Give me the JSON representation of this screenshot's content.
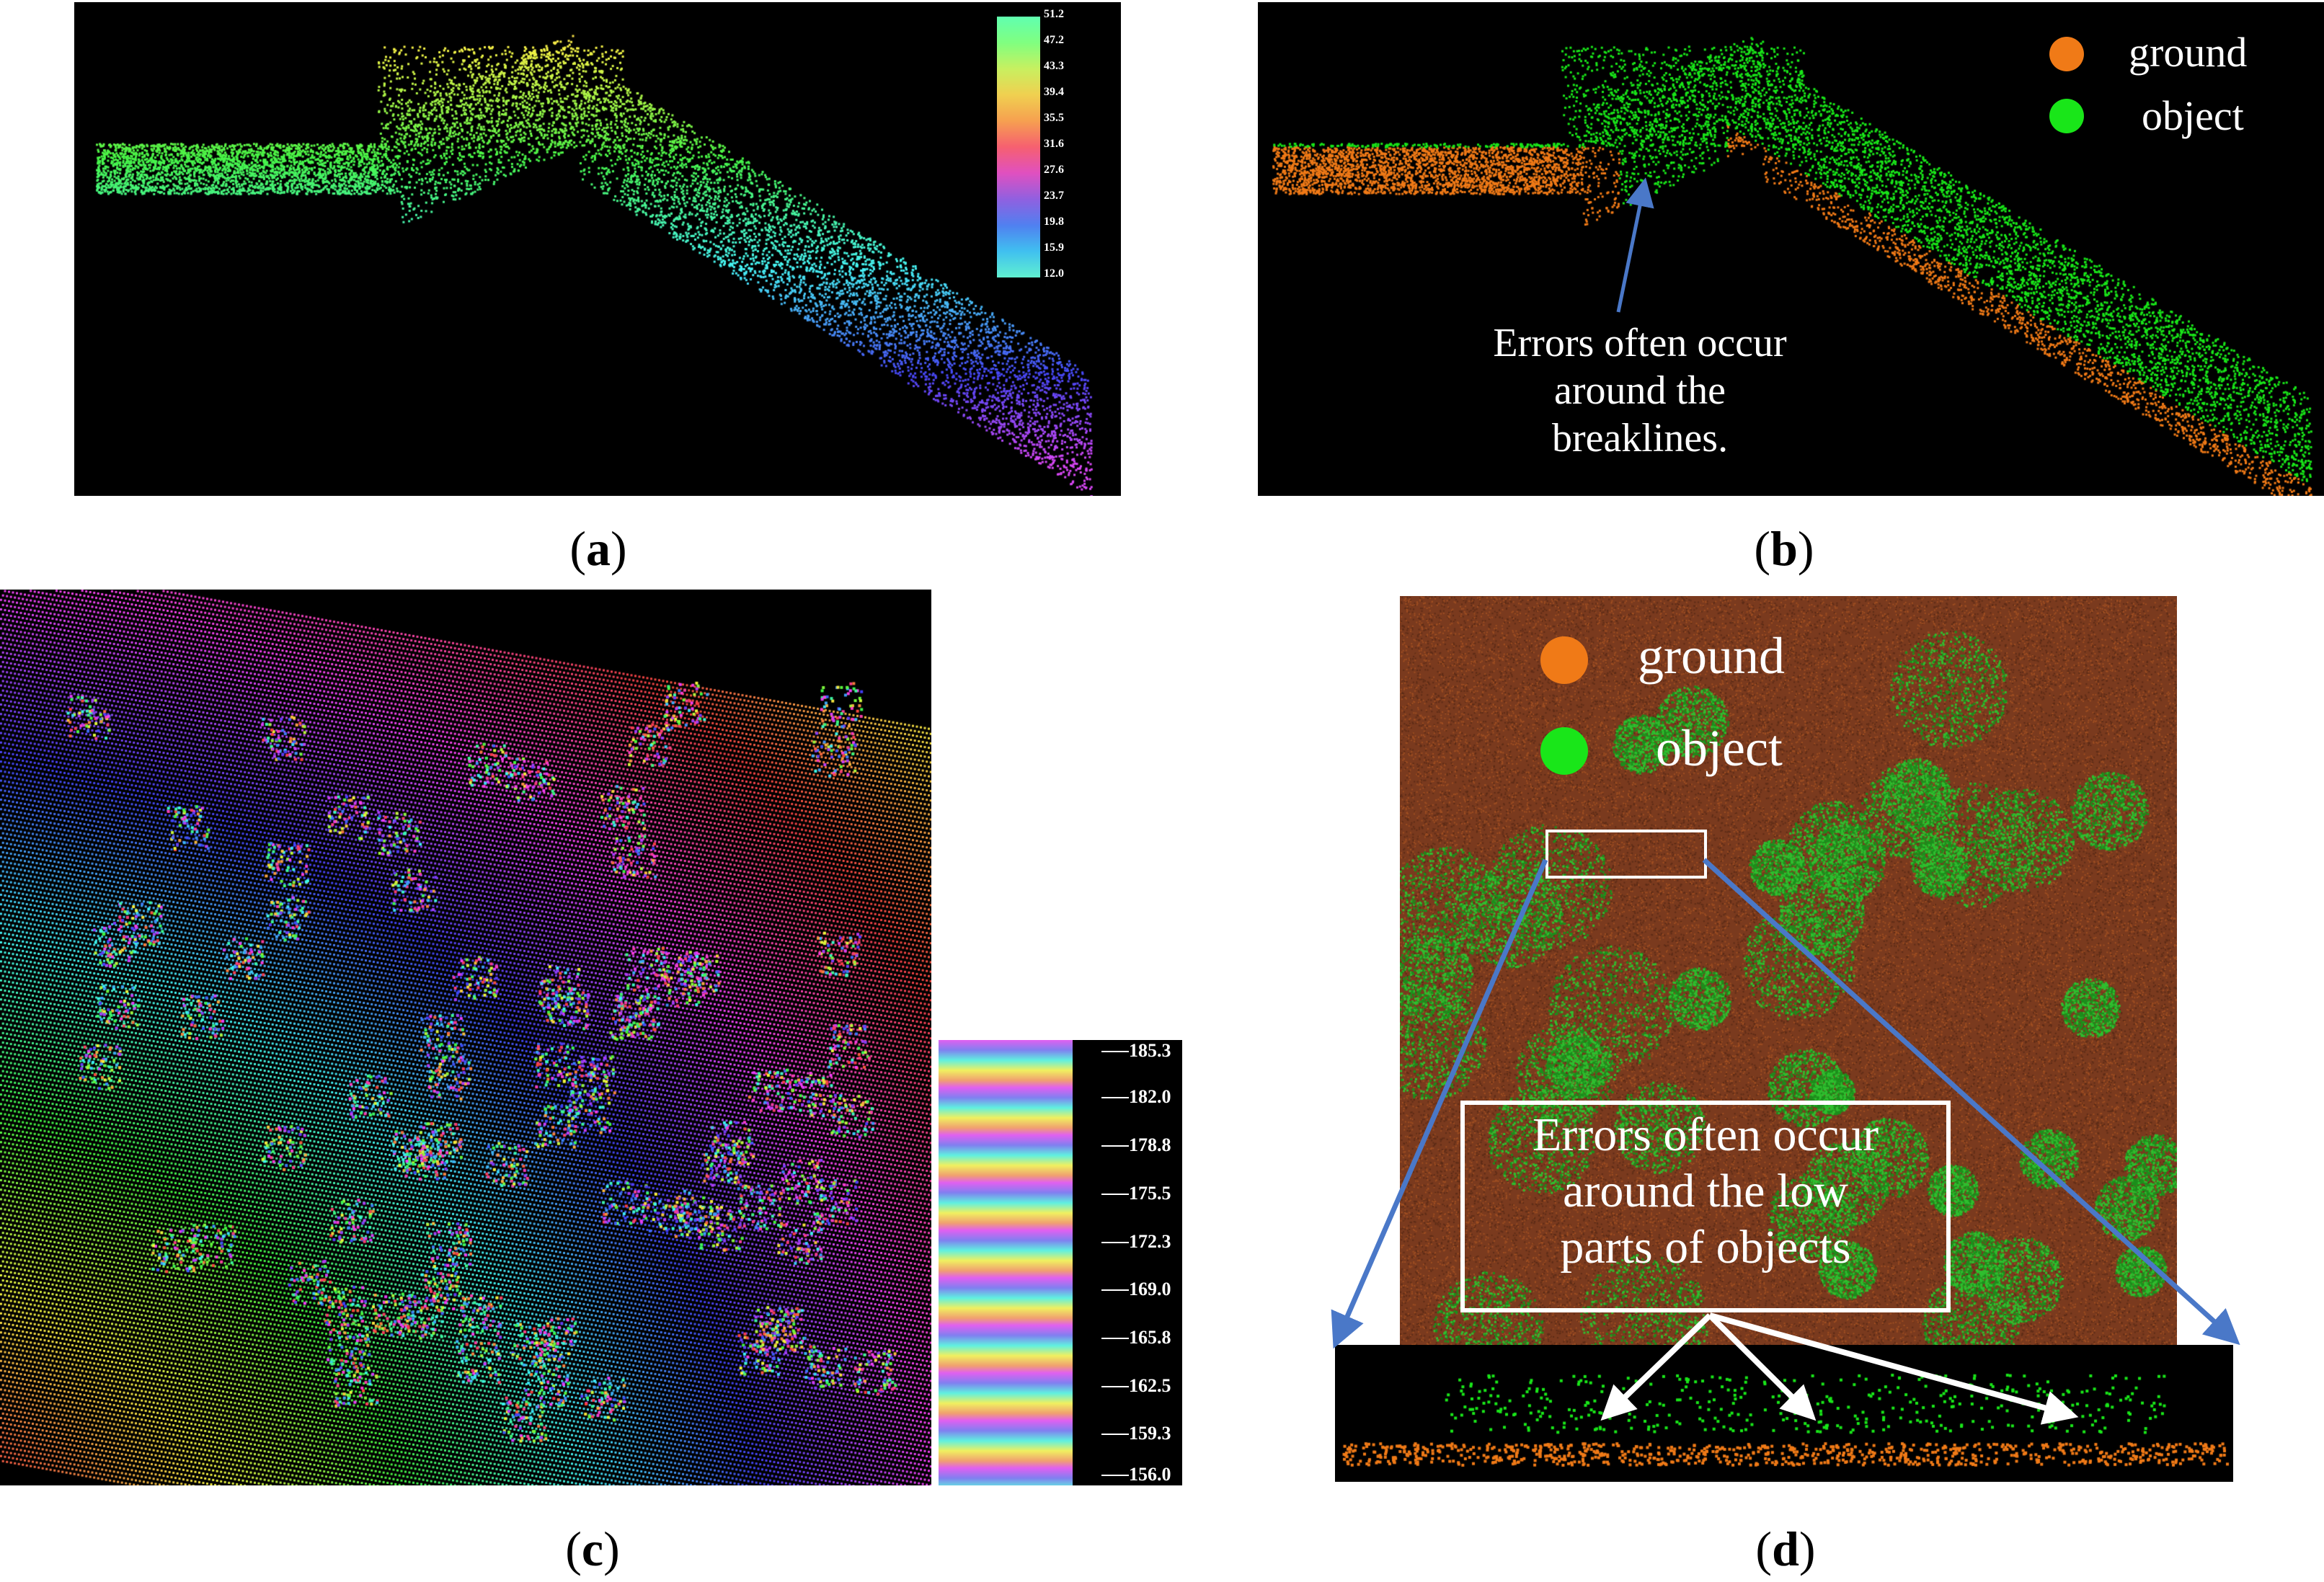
{
  "captions": {
    "a": "a",
    "b": "b",
    "c": "c",
    "d": "d"
  },
  "colors": {
    "ground": "#f07a17",
    "object": "#19e619",
    "background": "#000000",
    "arrow": "#4a78c8",
    "ground_texture": "#7a3a1e"
  },
  "panel_a": {
    "colorbar_ticks": [
      "51.2",
      "47.2",
      "43.3",
      "39.4",
      "35.5",
      "31.6",
      "27.6",
      "23.7",
      "19.8",
      "15.9",
      "12.0"
    ]
  },
  "panel_b": {
    "legend": [
      {
        "label": "ground"
      },
      {
        "label": "object"
      }
    ],
    "note_lines": [
      "Errors often occur",
      "around the",
      "breaklines."
    ]
  },
  "panel_c": {
    "colorbar_ticks": [
      "185.3",
      "182.0",
      "178.8",
      "175.5",
      "172.3",
      "169.0",
      "165.8",
      "162.5",
      "159.3",
      "156.0"
    ]
  },
  "panel_d": {
    "legend": [
      {
        "label": "ground"
      },
      {
        "label": "object"
      }
    ],
    "note_lines": [
      "Errors often occur",
      "around the low",
      "parts of objects"
    ]
  }
}
